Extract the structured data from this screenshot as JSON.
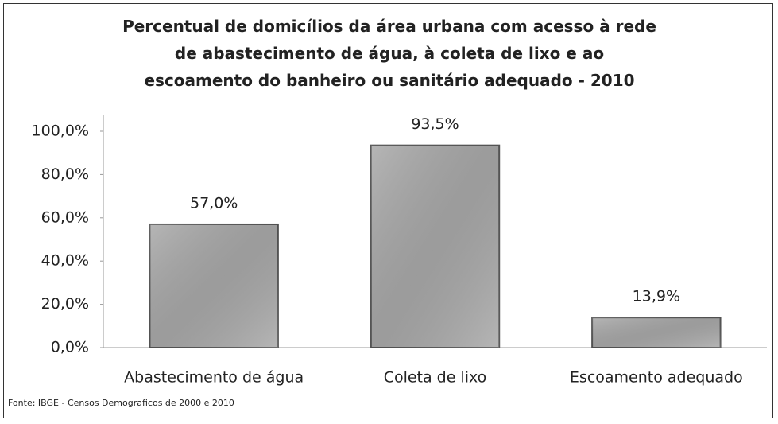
{
  "chart_data": {
    "type": "bar",
    "title": "Percentual de domicílios da área urbana com acesso à rede de abastecimento de água, à coleta de lixo e ao escoamento do banheiro ou sanitário adequado - 2010",
    "categories": [
      "Abastecimento de água",
      "Coleta de lixo",
      "Escoamento adequado"
    ],
    "values": [
      57.0,
      93.5,
      13.9
    ],
    "value_labels": [
      "57,0%",
      "93,5%",
      "13,9%"
    ],
    "color": "#a9a9a9",
    "ylim": [
      0,
      100
    ],
    "yticks": [
      {
        "value": 0,
        "label": "0,0%"
      },
      {
        "value": 20,
        "label": "20,0%"
      },
      {
        "value": 40,
        "label": "40,0%"
      },
      {
        "value": 60,
        "label": "60,0%"
      },
      {
        "value": 80,
        "label": "80,0%"
      },
      {
        "value": 100,
        "label": "100,0%"
      }
    ],
    "grid": false,
    "source": "Fonte: IBGE - Censos Demograficos de 2000 e 2010"
  }
}
